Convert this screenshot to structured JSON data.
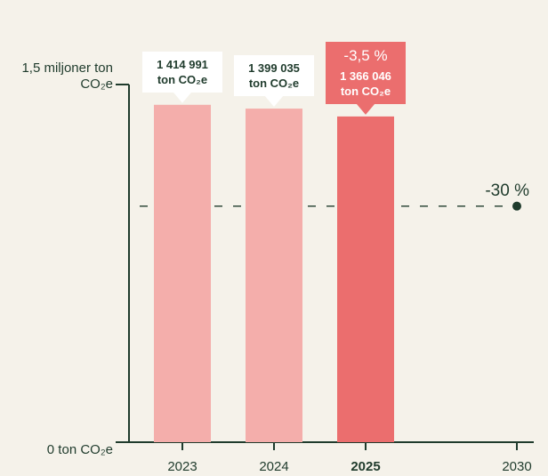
{
  "chart_data": {
    "type": "bar",
    "categories": [
      "2023",
      "2024",
      "2025",
      "2030"
    ],
    "values": [
      1414991,
      1399035,
      1366046,
      null
    ],
    "value_labels": [
      "1 414 991 ton CO₂e",
      "1 399 035 ton CO₂e",
      "1 366 046 ton CO₂e",
      null
    ],
    "color": "#f4aeab",
    "highlight": "2025",
    "highlight_color": "#eb6e6e",
    "change_label": "-3,5 %",
    "ylim": [
      0,
      1500000
    ],
    "yticks": [
      {
        "value": 0,
        "label": "0 ton CO₂e"
      },
      {
        "value": 1500000,
        "label": "1,5 miljoner ton CO₂e"
      }
    ],
    "target": {
      "category": "2030",
      "value": 990000,
      "label": "-30 %"
    },
    "axis_color": "#1f3b2c"
  }
}
